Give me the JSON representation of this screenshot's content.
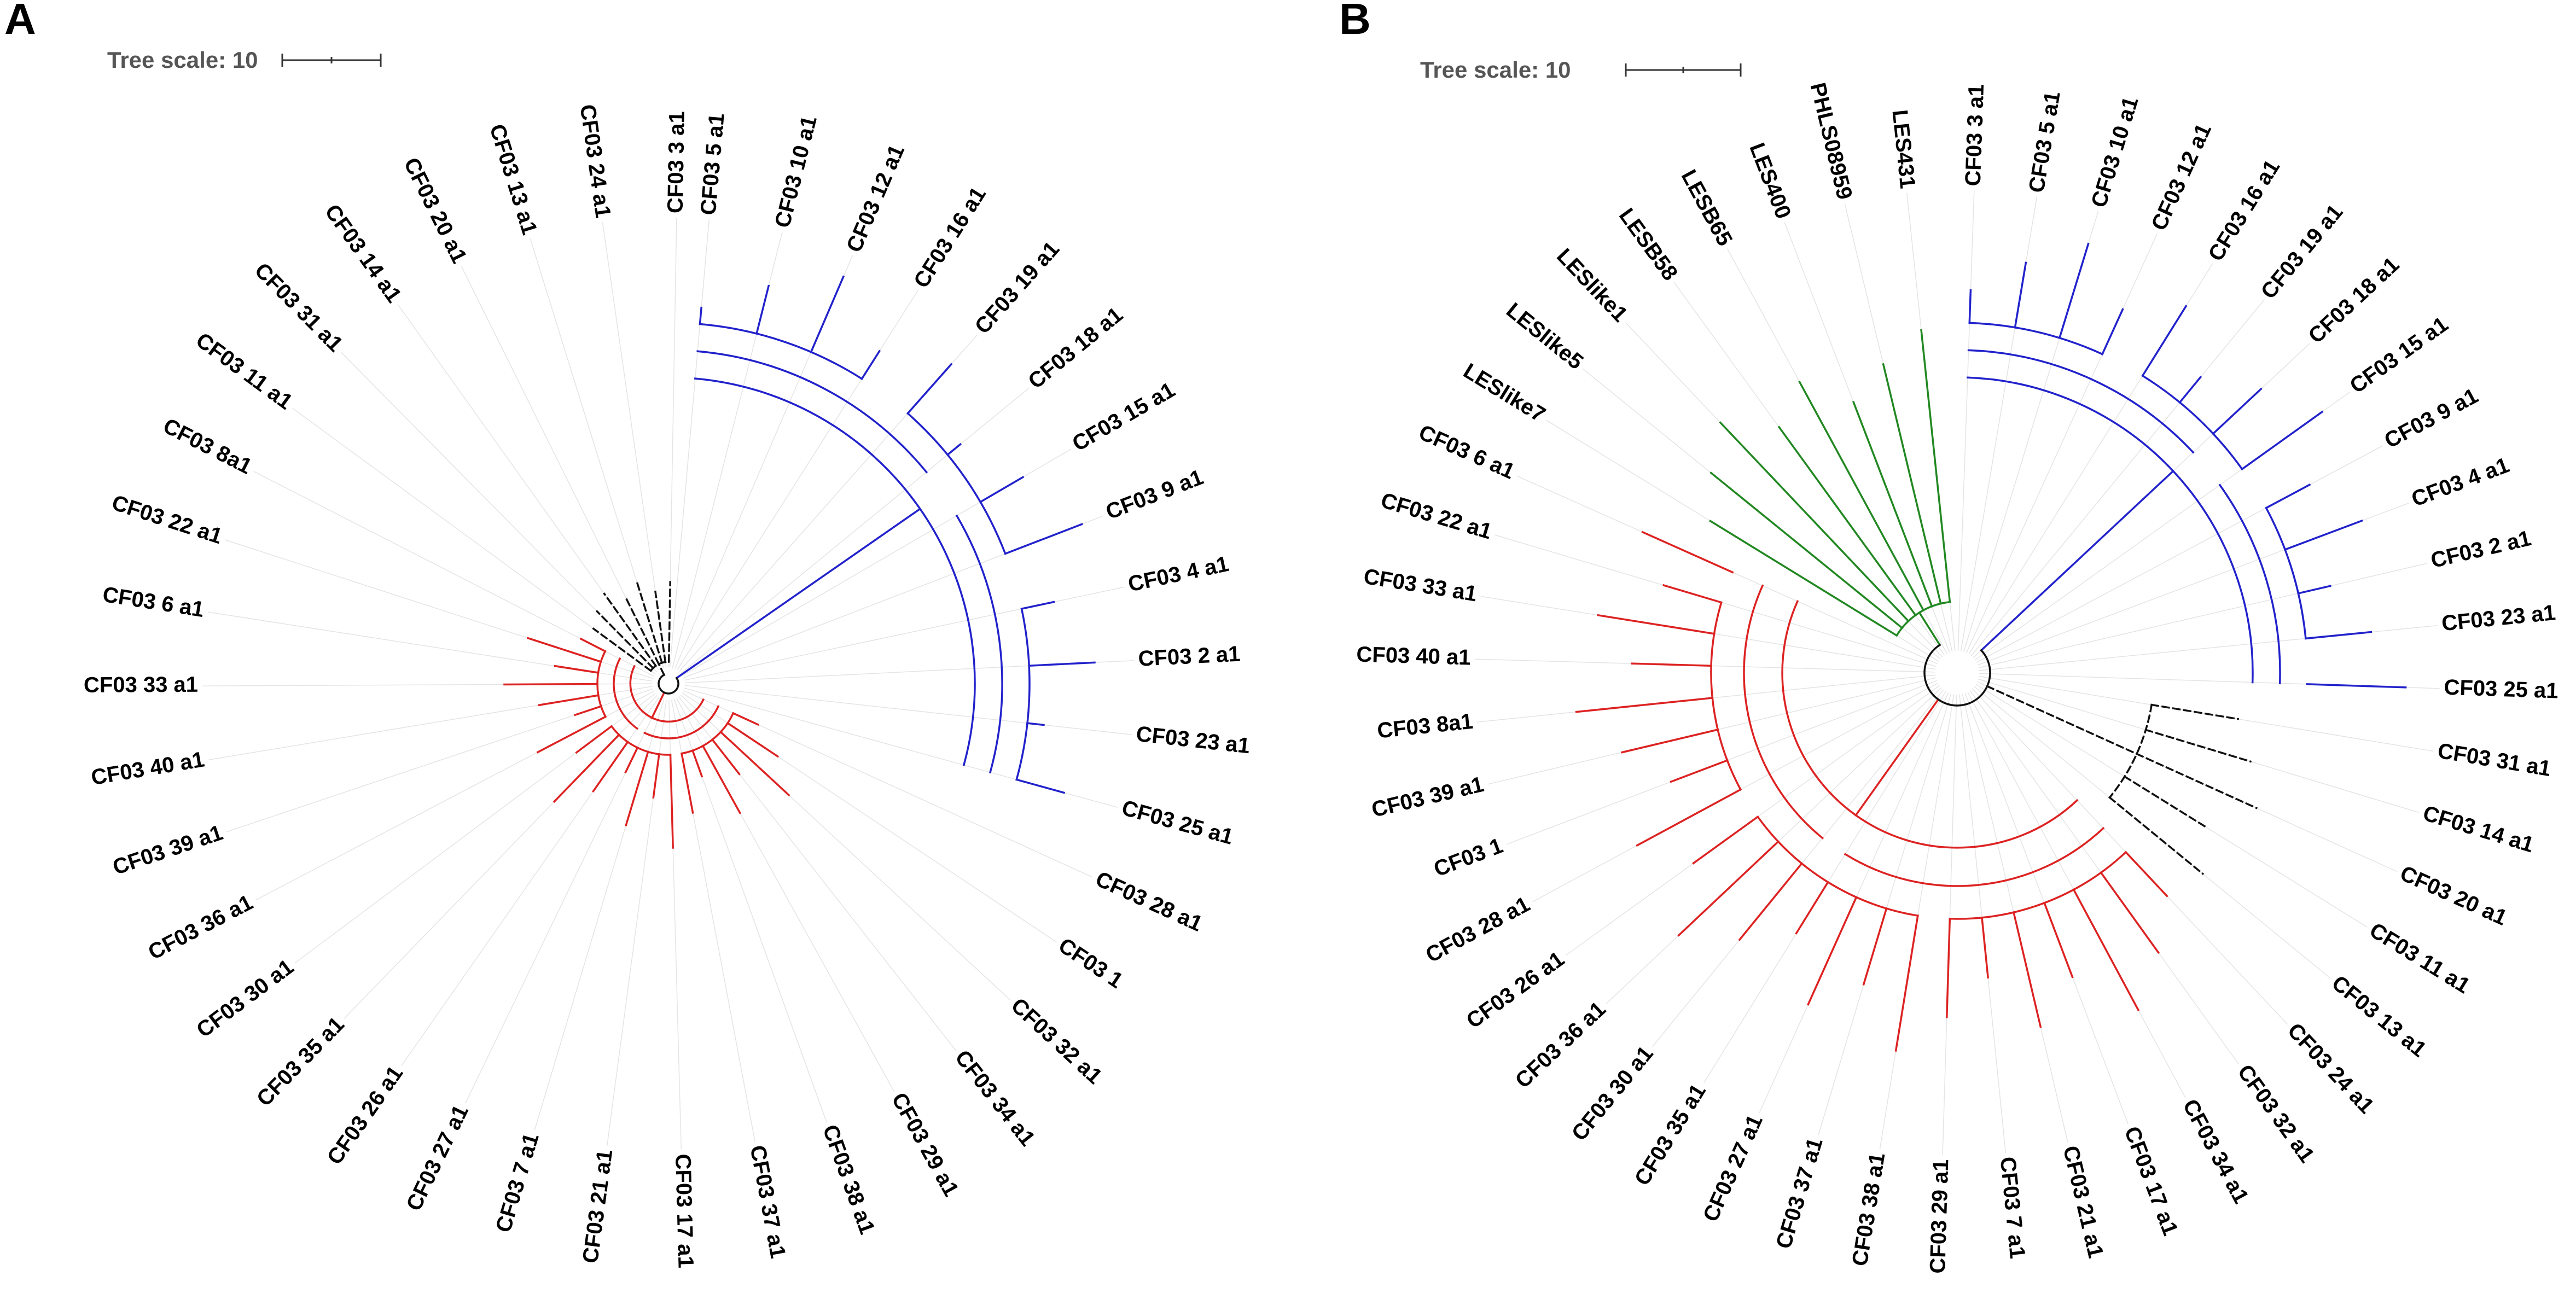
{
  "colors": {
    "blue_clade": "#2222cc",
    "red_clade": "#dd2222",
    "green_clade": "#228822",
    "other": "#111111",
    "guide": "#e4e4e4"
  },
  "panels": [
    {
      "label": "A",
      "scale_text": "Tree scale: 10",
      "leaves": [
        {
          "name": "CF03 5 a1",
          "group": "blue"
        },
        {
          "name": "CF03 10 a1",
          "group": "blue"
        },
        {
          "name": "CF03 12 a1",
          "group": "blue"
        },
        {
          "name": "CF03 16 a1",
          "group": "blue"
        },
        {
          "name": "CF03 19 a1",
          "group": "blue"
        },
        {
          "name": "CF03 18 a1",
          "group": "blue"
        },
        {
          "name": "CF03 15 a1",
          "group": "blue"
        },
        {
          "name": "CF03 9 a1",
          "group": "blue"
        },
        {
          "name": "CF03 4 a1",
          "group": "blue"
        },
        {
          "name": "CF03 2 a1",
          "group": "blue"
        },
        {
          "name": "CF03 23 a1",
          "group": "blue"
        },
        {
          "name": "CF03 25 a1",
          "group": "blue"
        },
        {
          "name": "CF03 28 a1",
          "group": "red"
        },
        {
          "name": "CF03 1",
          "group": "red"
        },
        {
          "name": "CF03 32 a1",
          "group": "red"
        },
        {
          "name": "CF03 34 a1",
          "group": "red"
        },
        {
          "name": "CF03 29 a1",
          "group": "red"
        },
        {
          "name": "CF03 38 a1",
          "group": "red"
        },
        {
          "name": "CF03 37 a1",
          "group": "red"
        },
        {
          "name": "CF03 17 a1",
          "group": "red"
        },
        {
          "name": "CF03 21 a1",
          "group": "red"
        },
        {
          "name": "CF03 7 a1",
          "group": "red"
        },
        {
          "name": "CF03 27 a1",
          "group": "red"
        },
        {
          "name": "CF03 26 a1",
          "group": "red"
        },
        {
          "name": "CF03 35 a1",
          "group": "red"
        },
        {
          "name": "CF03 30 a1",
          "group": "red"
        },
        {
          "name": "CF03 36 a1",
          "group": "red"
        },
        {
          "name": "CF03 39 a1",
          "group": "red"
        },
        {
          "name": "CF03 40 a1",
          "group": "red"
        },
        {
          "name": "CF03 33 a1",
          "group": "red"
        },
        {
          "name": "CF03 6 a1",
          "group": "red"
        },
        {
          "name": "CF03 22 a1",
          "group": "red"
        },
        {
          "name": "CF03 8a1",
          "group": "red"
        },
        {
          "name": "CF03 11 a1",
          "group": "other"
        },
        {
          "name": "CF03 31 a1",
          "group": "other"
        },
        {
          "name": "CF03 14 a1",
          "group": "other"
        },
        {
          "name": "CF03 20 a1",
          "group": "other"
        },
        {
          "name": "CF03 13 a1",
          "group": "other"
        },
        {
          "name": "CF03 24 a1",
          "group": "other"
        },
        {
          "name": "CF03 3 a1",
          "group": "other"
        }
      ]
    },
    {
      "label": "B",
      "scale_text": "Tree scale: 10",
      "leaves": [
        {
          "name": "CF03 3 a1",
          "group": "blue"
        },
        {
          "name": "CF03 5 a1",
          "group": "blue"
        },
        {
          "name": "CF03 10 a1",
          "group": "blue"
        },
        {
          "name": "CF03 12 a1",
          "group": "blue"
        },
        {
          "name": "CF03 16 a1",
          "group": "blue"
        },
        {
          "name": "CF03 19 a1",
          "group": "blue"
        },
        {
          "name": "CF03 18 a1",
          "group": "blue"
        },
        {
          "name": "CF03 15 a1",
          "group": "blue"
        },
        {
          "name": "CF03 9 a1",
          "group": "blue"
        },
        {
          "name": "CF03 4 a1",
          "group": "blue"
        },
        {
          "name": "CF03 2 a1",
          "group": "blue"
        },
        {
          "name": "CF03 23 a1",
          "group": "blue"
        },
        {
          "name": "CF03 25 a1",
          "group": "blue"
        },
        {
          "name": "CF03 31 a1",
          "group": "other"
        },
        {
          "name": "CF03 14 a1",
          "group": "other"
        },
        {
          "name": "CF03 20 a1",
          "group": "other"
        },
        {
          "name": "CF03 11 a1",
          "group": "other"
        },
        {
          "name": "CF03 13 a1",
          "group": "other"
        },
        {
          "name": "CF03 24 a1",
          "group": "red"
        },
        {
          "name": "CF03 32 a1",
          "group": "red"
        },
        {
          "name": "CF03 34 a1",
          "group": "red"
        },
        {
          "name": "CF03 17 a1",
          "group": "red"
        },
        {
          "name": "CF03 21 a1",
          "group": "red"
        },
        {
          "name": "CF03 7 a1",
          "group": "red"
        },
        {
          "name": "CF03 29 a1",
          "group": "red"
        },
        {
          "name": "CF03 38 a1",
          "group": "red"
        },
        {
          "name": "CF03 37 a1",
          "group": "red"
        },
        {
          "name": "CF03 27 a1",
          "group": "red"
        },
        {
          "name": "CF03 35 a1",
          "group": "red"
        },
        {
          "name": "CF03 30 a1",
          "group": "red"
        },
        {
          "name": "CF03 36 a1",
          "group": "red"
        },
        {
          "name": "CF03 26 a1",
          "group": "red"
        },
        {
          "name": "CF03 28 a1",
          "group": "red"
        },
        {
          "name": "CF03 1",
          "group": "red"
        },
        {
          "name": "CF03 39 a1",
          "group": "red"
        },
        {
          "name": "CF03 8a1",
          "group": "red"
        },
        {
          "name": "CF03 40 a1",
          "group": "red"
        },
        {
          "name": "CF03 33 a1",
          "group": "red"
        },
        {
          "name": "CF03 22 a1",
          "group": "red"
        },
        {
          "name": "CF03 6 a1",
          "group": "red"
        },
        {
          "name": "LESlike7",
          "group": "green"
        },
        {
          "name": "LESlike5",
          "group": "green"
        },
        {
          "name": "LESlike1",
          "group": "green"
        },
        {
          "name": "LESB58",
          "group": "green"
        },
        {
          "name": "LESB65",
          "group": "green"
        },
        {
          "name": "LES400",
          "group": "green"
        },
        {
          "name": "PHLS08959",
          "group": "green"
        },
        {
          "name": "LES431",
          "group": "green"
        }
      ]
    }
  ]
}
